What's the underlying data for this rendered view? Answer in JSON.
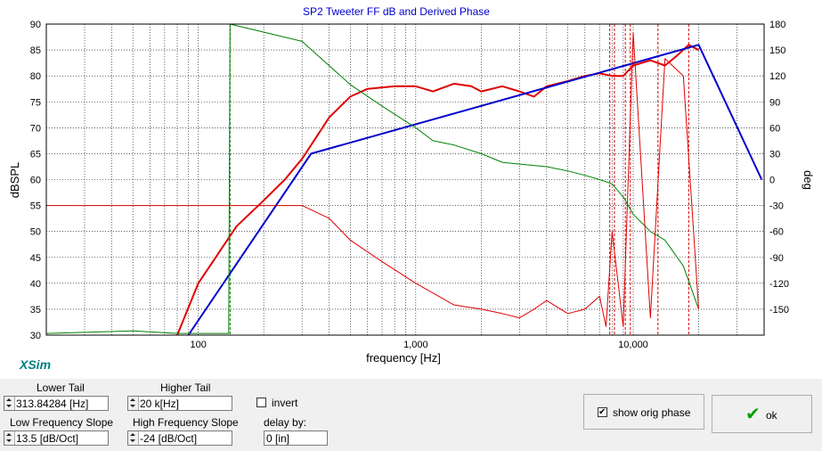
{
  "chart_data": {
    "type": "line",
    "title": "SP2 Tweeter FF dB and Derived Phase",
    "xlabel": "frequency [Hz]",
    "ylabel": "dBSPL",
    "y2label": "deg",
    "xscale": "log",
    "xlim": [
      20,
      40000
    ],
    "ylim": [
      30,
      90
    ],
    "y2lim": [
      -180,
      180
    ],
    "x_ticks": [
      "100",
      "1,000",
      "10,000"
    ],
    "x_tick_values": [
      100,
      1000,
      10000
    ],
    "y_ticks": [
      30,
      35,
      40,
      45,
      50,
      55,
      60,
      65,
      70,
      75,
      80,
      85,
      90
    ],
    "y2_ticks": [
      180,
      150,
      120,
      90,
      60,
      30,
      0,
      -30,
      -60,
      -90,
      -120,
      -150
    ],
    "grid": true,
    "series": [
      {
        "role": "spl-measured",
        "axis": "left",
        "color": "#e00000",
        "width": 2,
        "x": [
          80,
          100,
          150,
          200,
          250,
          300,
          400,
          500,
          600,
          800,
          1000,
          1200,
          1500,
          1800,
          2000,
          2500,
          3000,
          3500,
          4000,
          5000,
          6000,
          7000,
          8000,
          9000,
          10000,
          12000,
          14000,
          16000,
          18000,
          20000
        ],
        "values": [
          30,
          40,
          51,
          56,
          60,
          64,
          72,
          76,
          77.5,
          78,
          78,
          77,
          78.5,
          78,
          77,
          78,
          77,
          76,
          78,
          79,
          80,
          80.5,
          80,
          80,
          82,
          83,
          82,
          84,
          86,
          85
        ]
      },
      {
        "role": "spl-target",
        "axis": "left",
        "color": "#0000cc",
        "width": 2,
        "x": [
          90,
          330,
          20000,
          39000
        ],
        "values": [
          30,
          65,
          86,
          60
        ]
      },
      {
        "role": "phase-derived",
        "axis": "right",
        "color": "#008000",
        "width": 1,
        "x": [
          20,
          50,
          80,
          138,
          140,
          300,
          500,
          700,
          1000,
          1200,
          1500,
          2000,
          2500,
          3000,
          4000,
          5000,
          6000,
          7000,
          8000,
          9000,
          10000,
          12000,
          14000,
          17000,
          20000
        ],
        "values": [
          -178,
          -175,
          -178,
          -178,
          180,
          160,
          110,
          85,
          60,
          45,
          40,
          30,
          20,
          18,
          15,
          10,
          5,
          0,
          -5,
          -20,
          -40,
          -60,
          -70,
          -100,
          -150
        ]
      },
      {
        "role": "phase-original",
        "axis": "right",
        "color": "#e00000",
        "width": 1,
        "x": [
          20,
          200,
          300,
          400,
          500,
          700,
          1000,
          1500,
          2000,
          2500,
          3000,
          3500,
          4000,
          5000,
          6000,
          7000,
          7500,
          8000,
          9000,
          10000,
          12000,
          14000,
          17000,
          20000
        ],
        "values": [
          -30,
          -30,
          -30,
          -45,
          -70,
          -95,
          -120,
          -145,
          -150,
          -155,
          -160,
          -150,
          -140,
          -155,
          -150,
          -135,
          -170,
          -60,
          -170,
          170,
          -160,
          140,
          120,
          -150
        ]
      }
    ],
    "vertical_markers": [
      {
        "x": 140,
        "color": "#008000"
      },
      {
        "x": 7800,
        "color": "#e00000"
      },
      {
        "x": 8200,
        "color": "#e00000"
      },
      {
        "x": 9200,
        "color": "#e00000"
      },
      {
        "x": 9700,
        "color": "#e00000"
      },
      {
        "x": 13000,
        "color": "#e00000"
      },
      {
        "x": 18000,
        "color": "#e00000"
      }
    ],
    "watermark": "XSim"
  },
  "controls": {
    "lower_tail_label": "Lower Tail",
    "lower_tail_value": "313.84284 [Hz]",
    "higher_tail_label": "Higher Tail",
    "higher_tail_value": "20 k[Hz]",
    "invert_label": "invert",
    "low_slope_label": "Low Frequency Slope",
    "low_slope_value": "13.5 [dB/Oct]",
    "high_slope_label": "High Frequency Slope",
    "high_slope_value": "-24 [dB/Oct]",
    "delay_label": "delay by:",
    "delay_value": "0 [in]",
    "show_orig_phase_label": "show orig phase",
    "ok_label": "ok"
  },
  "colors": {
    "spl": "#e00000",
    "target": "#0000cc",
    "phase": "#008000",
    "title": "#0000cc",
    "watermark": "#008080",
    "ok_check": "#00a000"
  },
  "icons": {
    "ok": "check-icon"
  }
}
